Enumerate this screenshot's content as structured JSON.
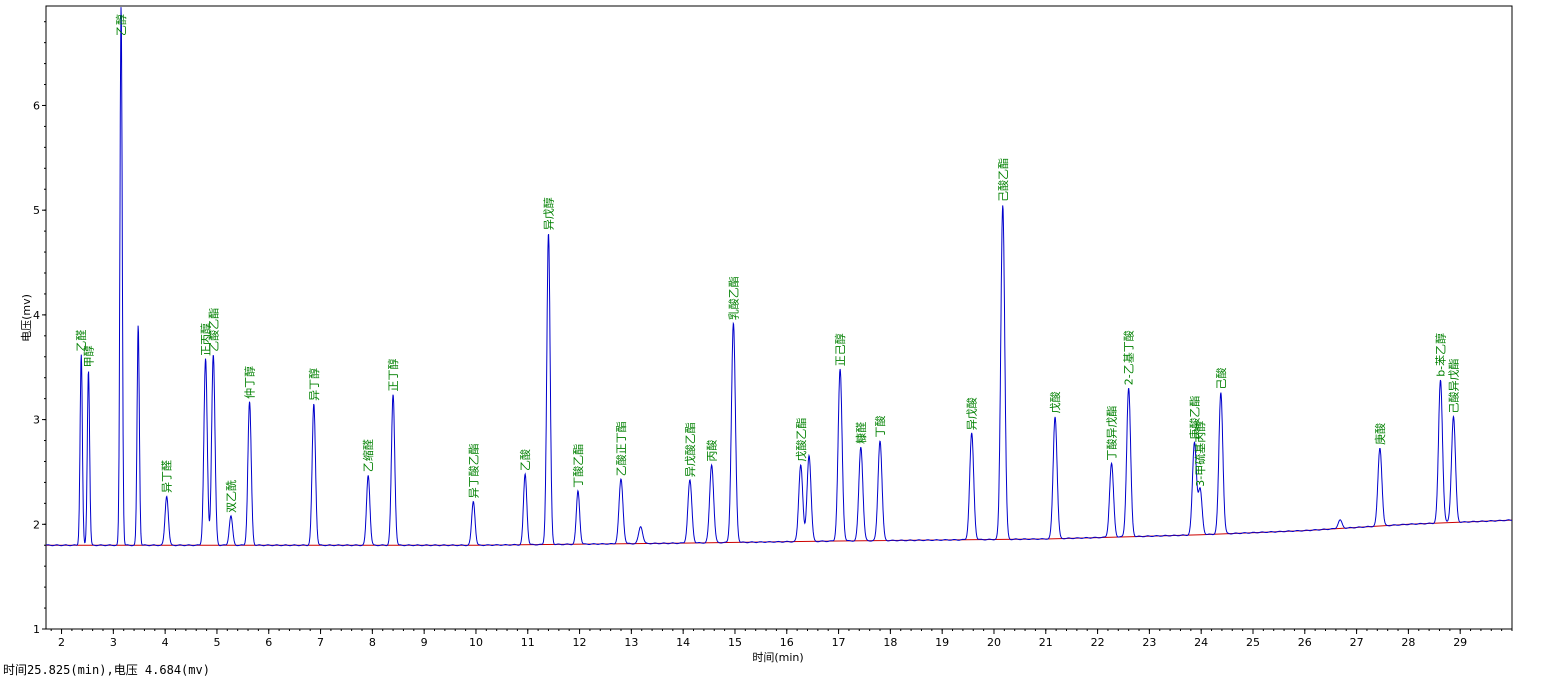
{
  "status_readout": "时间25.825(min),电压 4.684(mv)",
  "chart_data": {
    "type": "line",
    "xlabel": "时间(min)",
    "ylabel": "电压(mv)",
    "xlim": [
      1.7,
      30.0
    ],
    "ylim": [
      1.0,
      6.95
    ],
    "xticks": [
      2,
      3,
      4,
      5,
      6,
      7,
      8,
      9,
      10,
      11,
      12,
      13,
      14,
      15,
      16,
      17,
      18,
      19,
      20,
      21,
      22,
      23,
      24,
      25,
      26,
      27,
      28,
      29
    ],
    "yticks": [
      1,
      2,
      3,
      4,
      5,
      6
    ],
    "grid": false,
    "legend": "none",
    "colors": {
      "signal": "#0000cc",
      "baseline": "#cc0000",
      "label": "#008000",
      "axis": "#000000"
    },
    "baseline": [
      [
        1.7,
        1.8
      ],
      [
        10,
        1.8
      ],
      [
        14,
        1.82
      ],
      [
        17,
        1.84
      ],
      [
        21,
        1.86
      ],
      [
        24,
        1.9
      ],
      [
        26,
        1.94
      ],
      [
        28,
        2.0
      ],
      [
        30,
        2.04
      ]
    ],
    "peaks": [
      {
        "name": "乙醛",
        "rt": 2.38,
        "height": 3.62
      },
      {
        "name": "甲醇",
        "rt": 2.52,
        "height": 3.47
      },
      {
        "name": "乙醇",
        "rt": 3.15,
        "height": 6.95
      },
      {
        "name": "",
        "rt": 3.48,
        "height": 3.9
      },
      {
        "name": "异丁醛",
        "rt": 4.03,
        "height": 2.27
      },
      {
        "name": "正丙醇",
        "rt": 4.78,
        "height": 3.58
      },
      {
        "name": "乙酸乙酯",
        "rt": 4.93,
        "height": 3.62
      },
      {
        "name": "双乙酰",
        "rt": 5.27,
        "height": 2.08
      },
      {
        "name": "仲丁醇",
        "rt": 5.63,
        "height": 3.17
      },
      {
        "name": "异丁醇",
        "rt": 6.87,
        "height": 3.15
      },
      {
        "name": "乙缩醛",
        "rt": 7.92,
        "height": 2.47
      },
      {
        "name": "正丁醇",
        "rt": 8.4,
        "height": 3.24
      },
      {
        "name": "异丁酸乙酯",
        "rt": 9.95,
        "height": 2.22
      },
      {
        "name": "乙酸",
        "rt": 10.95,
        "height": 2.48
      },
      {
        "name": "异戊醇",
        "rt": 11.4,
        "height": 4.78
      },
      {
        "name": "丁酸乙酯",
        "rt": 11.97,
        "height": 2.32
      },
      {
        "name": "乙酸正丁酯",
        "rt": 12.8,
        "height": 2.43
      },
      {
        "name": "",
        "rt": 13.18,
        "height": 1.98
      },
      {
        "name": "异戊酸乙酯",
        "rt": 14.13,
        "height": 2.42
      },
      {
        "name": "丙酸",
        "rt": 14.55,
        "height": 2.57
      },
      {
        "name": "乳酸乙酯",
        "rt": 14.97,
        "height": 3.92
      },
      {
        "name": "戊酸乙酯",
        "rt": 16.27,
        "height": 2.57
      },
      {
        "name": "",
        "rt": 16.43,
        "height": 2.66
      },
      {
        "name": "正己醇",
        "rt": 17.03,
        "height": 3.48
      },
      {
        "name": "糠醛",
        "rt": 17.43,
        "height": 2.74
      },
      {
        "name": "丁酸",
        "rt": 17.8,
        "height": 2.8
      },
      {
        "name": "异戊酸",
        "rt": 19.57,
        "height": 2.87
      },
      {
        "name": "己酸乙酯",
        "rt": 20.17,
        "height": 5.05
      },
      {
        "name": "戊酸",
        "rt": 21.18,
        "height": 3.03
      },
      {
        "name": "丁酸异戊酯",
        "rt": 22.27,
        "height": 2.58
      },
      {
        "name": "2-乙基丁酸",
        "rt": 22.6,
        "height": 3.3
      },
      {
        "name": "庚酸乙酯",
        "rt": 23.87,
        "height": 2.78
      },
      {
        "name": "3-甲硫基丙醇",
        "rt": 23.98,
        "height": 2.33
      },
      {
        "name": "己酸",
        "rt": 24.38,
        "height": 3.26
      },
      {
        "name": "",
        "rt": 26.68,
        "height": 2.04
      },
      {
        "name": "庚酸",
        "rt": 27.45,
        "height": 2.73
      },
      {
        "name": "b-苯乙醇",
        "rt": 28.62,
        "height": 3.38
      },
      {
        "name": "己酸异戊酯",
        "rt": 28.87,
        "height": 3.03
      }
    ]
  }
}
